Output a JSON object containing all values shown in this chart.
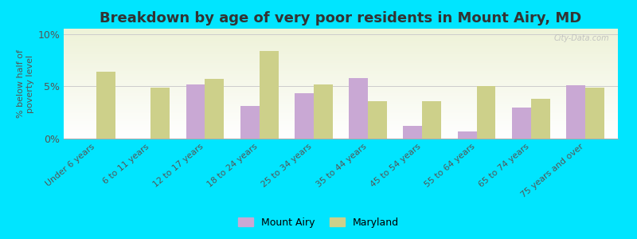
{
  "title": "Breakdown by age of very poor residents in Mount Airy, MD",
  "ylabel": "% below half of\npoverty level",
  "categories": [
    "Under 6 years",
    "6 to 11 years",
    "12 to 17 years",
    "18 to 24 years",
    "25 to 34 years",
    "35 to 44 years",
    "45 to 54 years",
    "55 to 64 years",
    "65 to 74 years",
    "75 years and over"
  ],
  "mount_airy": [
    0,
    0,
    5.2,
    3.1,
    4.3,
    5.8,
    1.2,
    0.7,
    3.0,
    5.1
  ],
  "maryland": [
    6.4,
    4.9,
    5.7,
    8.4,
    5.2,
    3.6,
    3.6,
    5.0,
    3.8,
    4.9
  ],
  "mount_airy_color": "#c9a8d4",
  "maryland_color": "#cdd08a",
  "background_color": "#00e5ff",
  "ylim": [
    0,
    10.5
  ],
  "yticks": [
    0,
    5,
    10
  ],
  "ytick_labels": [
    "0%",
    "5%",
    "10%"
  ],
  "title_fontsize": 13,
  "legend_labels": [
    "Mount Airy",
    "Maryland"
  ],
  "bar_width": 0.35
}
